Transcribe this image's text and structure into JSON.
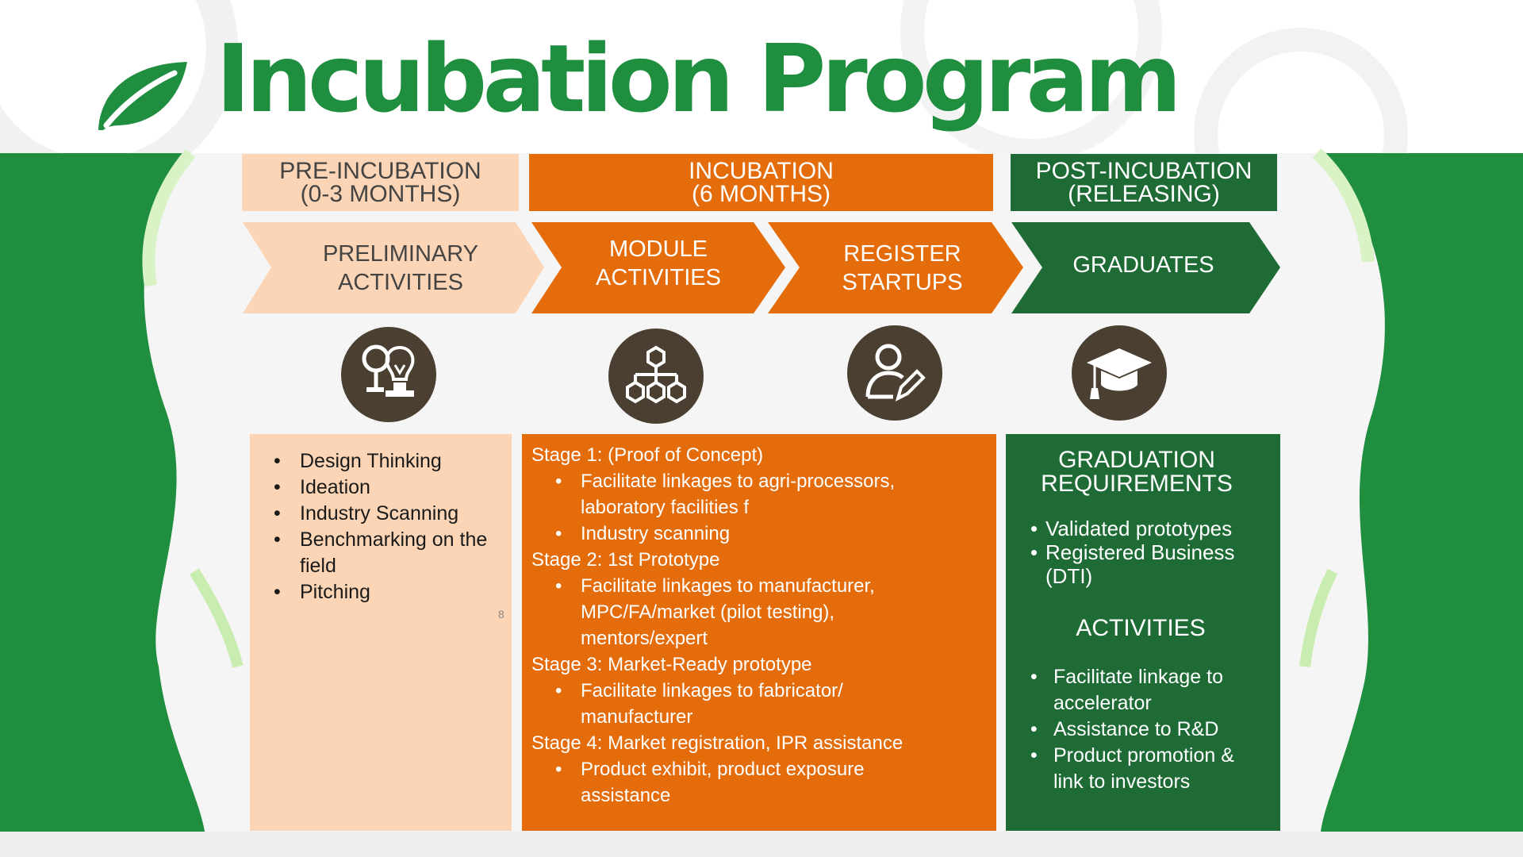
{
  "title": "Incubation Program",
  "colors": {
    "green": "#1f8f3f",
    "dark_green": "#1e6b36",
    "orange": "#e46c0a",
    "peach": "#fbd5b5",
    "icon_brown": "#4a3f31"
  },
  "headers": {
    "pre": {
      "line1": "PRE-INCUBATION",
      "line2": "(0-3 MONTHS)"
    },
    "inc": {
      "line1": "INCUBATION",
      "line2": "(6 MONTHS)"
    },
    "post": {
      "line1": "POST-INCUBATION",
      "line2": "(RELEASING)"
    }
  },
  "steps": [
    {
      "line1": "PRELIMINARY",
      "line2": "ACTIVITIES",
      "icon": "ideation-icon"
    },
    {
      "line1": "MODULE",
      "line2": "ACTIVITIES",
      "icon": "modules-hierarchy-icon"
    },
    {
      "line1": "REGISTER",
      "line2": "STARTUPS",
      "icon": "user-edit-icon"
    },
    {
      "line1": "GRADUATES",
      "line2": "",
      "icon": "graduation-cap-icon"
    }
  ],
  "pre_panel": {
    "items": [
      "Design Thinking",
      "Ideation",
      "Industry Scanning",
      "Benchmarking on  the field",
      "Pitching"
    ],
    "page_number": "8"
  },
  "inc_panel": {
    "stages": [
      {
        "title": "Stage 1: (Proof of Concept)",
        "items": [
          "Facilitate linkages to agri-processors, laboratory facilities f",
          "Industry scanning"
        ]
      },
      {
        "title": "Stage 2: 1st Prototype",
        "items": [
          "Facilitate linkages to manufacturer, MPC/FA/market (pilot testing), mentors/expert"
        ]
      },
      {
        "title": "Stage 3: Market-Ready prototype",
        "items": [
          "Facilitate linkages to fabricator/ manufacturer"
        ]
      },
      {
        "title": "Stage 4: Market registration, IPR assistance",
        "items": [
          "Product exhibit, product exposure assistance"
        ]
      }
    ]
  },
  "post_panel": {
    "requirements_title_1": "GRADUATION",
    "requirements_title_2": "REQUIREMENTS",
    "requirements": [
      "Validated prototypes",
      "Registered Business (DTI)"
    ],
    "activities_title": "ACTIVITIES",
    "activities": [
      "Facilitate linkage to accelerator",
      "Assistance to R&D",
      "Product promotion & link to investors"
    ]
  }
}
